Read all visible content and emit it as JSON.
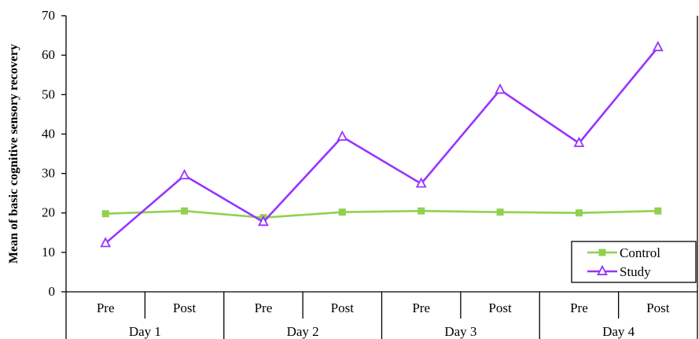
{
  "chart_data": {
    "type": "line",
    "ylabel": "Mean of basic cognitive sensory recovery",
    "ylim": [
      0,
      70
    ],
    "yticks": [
      0,
      10,
      20,
      30,
      40,
      50,
      60,
      70
    ],
    "categories": [
      "Pre",
      "Post",
      "Pre",
      "Post",
      "Pre",
      "Post",
      "Pre",
      "Post"
    ],
    "groups": [
      {
        "label": "Day 1",
        "span": 2
      },
      {
        "label": "Day 2",
        "span": 2
      },
      {
        "label": "Day 3",
        "span": 2
      },
      {
        "label": "Day 4",
        "span": 2
      }
    ],
    "series": [
      {
        "name": "Control",
        "marker": "square",
        "color": "#92d050",
        "values": [
          19.8,
          20.5,
          18.8,
          20.2,
          20.5,
          20.2,
          20.0,
          20.5
        ]
      },
      {
        "name": "Study",
        "marker": "triangle",
        "color": "#9933ff",
        "values": [
          12.3,
          29.5,
          17.7,
          39.3,
          27.4,
          51.2,
          37.7,
          62.0
        ]
      }
    ],
    "legend_position": "bottom-right",
    "grid": false
  }
}
